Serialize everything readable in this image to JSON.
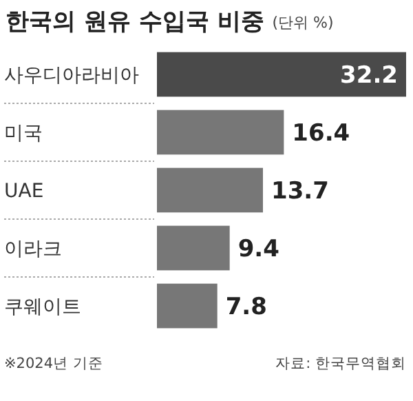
{
  "chart_data": {
    "type": "bar",
    "orientation": "horizontal",
    "title": "한국의 원유 수입국 비중",
    "subtitle": "(단위 %)",
    "categories": [
      "사우디아라비아",
      "미국",
      "UAE",
      "이라크",
      "쿠웨이트"
    ],
    "values": [
      32.2,
      16.4,
      13.7,
      9.4,
      7.8
    ],
    "colors": [
      "#4a4a4a",
      "#777777",
      "#777777",
      "#777777",
      "#777777"
    ],
    "data_labels": true,
    "annotations": [
      "※2024년 기준",
      "자료: 한국무역협회"
    ]
  }
}
